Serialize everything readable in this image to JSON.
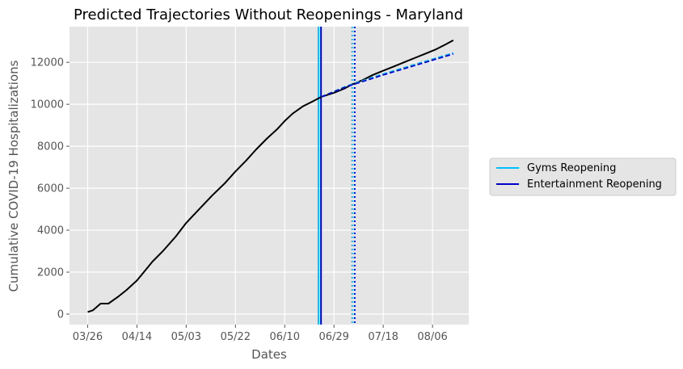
{
  "chart_data": {
    "type": "line",
    "title": "Predicted Trajectories Without Reopenings - Maryland",
    "xlabel": "Dates",
    "ylabel": "Cumulative COVID-19 Hospitalizations",
    "x_tick_labels": [
      "03/26",
      "04/14",
      "05/03",
      "05/22",
      "06/10",
      "06/29",
      "07/18",
      "08/06"
    ],
    "y_ticks": [
      0,
      2000,
      4000,
      6000,
      8000,
      10000,
      12000
    ],
    "xlim": [
      "2020-03-19",
      "2020-08-20"
    ],
    "ylim": [
      -500,
      13700
    ],
    "grid": true,
    "legend": {
      "placement": "right",
      "entries": [
        {
          "label": "Gyms Reopening",
          "color": "#00bfff"
        },
        {
          "label": "Entertainment Reopening",
          "color": "#0000cd"
        }
      ]
    },
    "series": [
      {
        "role": "observed",
        "color": "#000000",
        "style": "solid",
        "x": [
          "2020-03-26",
          "2020-03-28",
          "2020-03-31",
          "2020-04-03",
          "2020-04-07",
          "2020-04-10",
          "2020-04-14",
          "2020-04-17",
          "2020-04-20",
          "2020-04-24",
          "2020-04-29",
          "2020-05-03",
          "2020-05-08",
          "2020-05-13",
          "2020-05-18",
          "2020-05-22",
          "2020-05-26",
          "2020-05-30",
          "2020-06-03",
          "2020-06-07",
          "2020-06-10",
          "2020-06-13",
          "2020-06-17",
          "2020-06-21",
          "2020-06-24",
          "2020-06-29",
          "2020-07-03",
          "2020-07-06",
          "2020-07-10",
          "2020-07-14",
          "2020-07-18",
          "2020-07-22",
          "2020-07-26",
          "2020-07-30",
          "2020-08-03",
          "2020-08-07",
          "2020-08-11",
          "2020-08-14"
        ],
        "y": [
          100,
          180,
          500,
          500,
          850,
          1150,
          1600,
          2050,
          2500,
          3000,
          3700,
          4350,
          5000,
          5650,
          6250,
          6800,
          7300,
          7850,
          8350,
          8800,
          9200,
          9550,
          9900,
          10150,
          10350,
          10550,
          10750,
          10950,
          11150,
          11400,
          11600,
          11800,
          12000,
          12200,
          12400,
          12600,
          12850,
          13050
        ]
      },
      {
        "role": "gyms-predicted",
        "color": "#00bfff",
        "style": "dashed",
        "x": [
          "2020-06-24",
          "2020-07-04",
          "2020-07-18",
          "2020-08-14"
        ],
        "y": [
          10350,
          10880,
          11450,
          12450
        ]
      },
      {
        "role": "entertainment-predicted",
        "color": "#0000cd",
        "style": "dashed",
        "x": [
          "2020-06-24",
          "2020-07-04",
          "2020-07-18",
          "2020-08-14"
        ],
        "y": [
          10350,
          10850,
          11400,
          12400
        ]
      }
    ],
    "vertical_lines": [
      {
        "x": "2020-06-23",
        "color": "#00bfff",
        "style": "solid"
      },
      {
        "x": "2020-06-24",
        "color": "#0000cd",
        "style": "solid"
      },
      {
        "x": "2020-07-06",
        "color": "#00bfff",
        "style": "dotted"
      },
      {
        "x": "2020-07-07",
        "color": "#0000cd",
        "style": "dotted"
      }
    ]
  }
}
